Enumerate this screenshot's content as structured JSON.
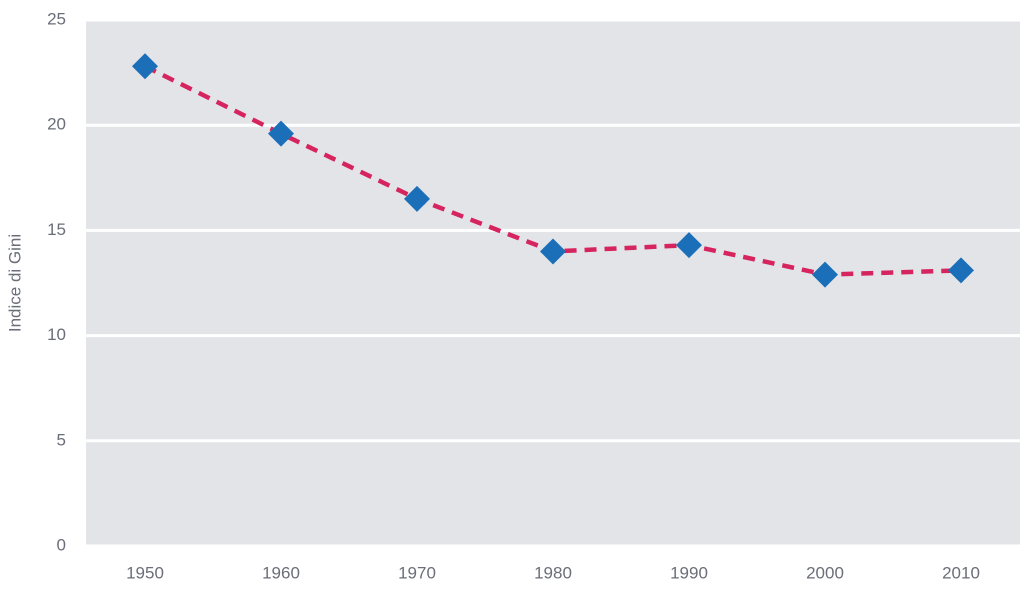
{
  "chart_data": {
    "type": "line",
    "y_label": "Indice di Gini",
    "categories": [
      "1950",
      "1960",
      "1970",
      "1980",
      "1990",
      "2000",
      "2010"
    ],
    "values": [
      22.8,
      19.6,
      16.5,
      14.0,
      14.3,
      12.9,
      13.1
    ],
    "color": "#d6245f",
    "marker_color": "#1a6fb8",
    "line_style": "dashed",
    "marker": "diamond",
    "ylim": [
      0,
      25
    ],
    "yticks": [
      0,
      5,
      10,
      15,
      20,
      25
    ],
    "grid": true
  }
}
